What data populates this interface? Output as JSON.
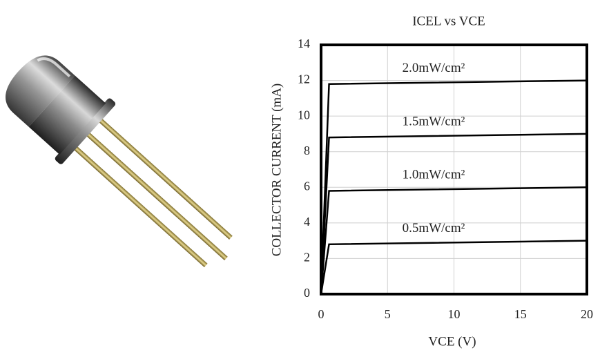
{
  "chart_data": {
    "type": "line",
    "title": "ICEL vs VCE",
    "xlabel": "VCE (V)",
    "ylabel": "COLLECTOR CURRENT (mA)",
    "x": [
      0,
      0.6,
      20
    ],
    "series": [
      {
        "name": "2.0mW/cm²",
        "color": "#000000",
        "values": [
          0,
          11.8,
          12
        ]
      },
      {
        "name": "1.5mW/cm²",
        "color": "#000000",
        "values": [
          0,
          8.8,
          9
        ]
      },
      {
        "name": "1.0mW/cm²",
        "color": "#000000",
        "values": [
          0,
          5.8,
          6
        ]
      },
      {
        "name": "0.5mW/cm²",
        "color": "#000000",
        "values": [
          0,
          2.8,
          3
        ]
      }
    ],
    "xlim": [
      0,
      20
    ],
    "xticks": [
      0,
      5,
      10,
      15,
      20
    ],
    "ylim": [
      0,
      14
    ],
    "yticks": [
      0,
      2,
      4,
      6,
      8,
      10,
      12,
      14
    ],
    "grid": true
  }
}
